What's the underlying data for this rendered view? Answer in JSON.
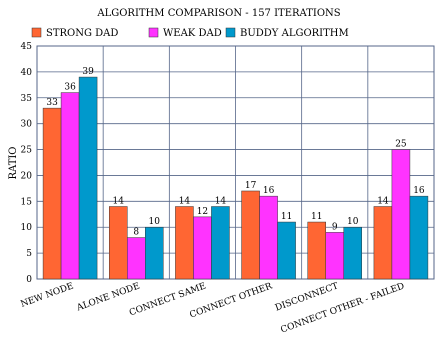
{
  "chart_data": {
    "type": "bar",
    "title": "ALGORITHM COMPARISON - 157 ITERATIONS",
    "xlabel": "",
    "ylabel": "RATIO",
    "ylim": [
      0,
      45
    ],
    "yticks": [
      0,
      5,
      10,
      15,
      20,
      25,
      30,
      35,
      40,
      45
    ],
    "grid": true,
    "legend_position": "top",
    "categories": [
      "NEW NODE",
      "ALONE NODE",
      "CONNECT SAME",
      "CONNECT OTHER",
      "DISCONNECT",
      "CONNECT OTHER - FAILED"
    ],
    "series": [
      {
        "name": "STRONG DAD",
        "color": "#ff6633",
        "values": [
          33,
          14,
          14,
          17,
          11,
          14
        ]
      },
      {
        "name": "WEAK DAD",
        "color": "#ff33ff",
        "values": [
          36,
          8,
          12,
          16,
          9,
          25
        ]
      },
      {
        "name": "BUDDY ALGORITHM",
        "color": "#0099cc",
        "values": [
          39,
          10,
          14,
          11,
          10,
          16
        ]
      }
    ]
  }
}
